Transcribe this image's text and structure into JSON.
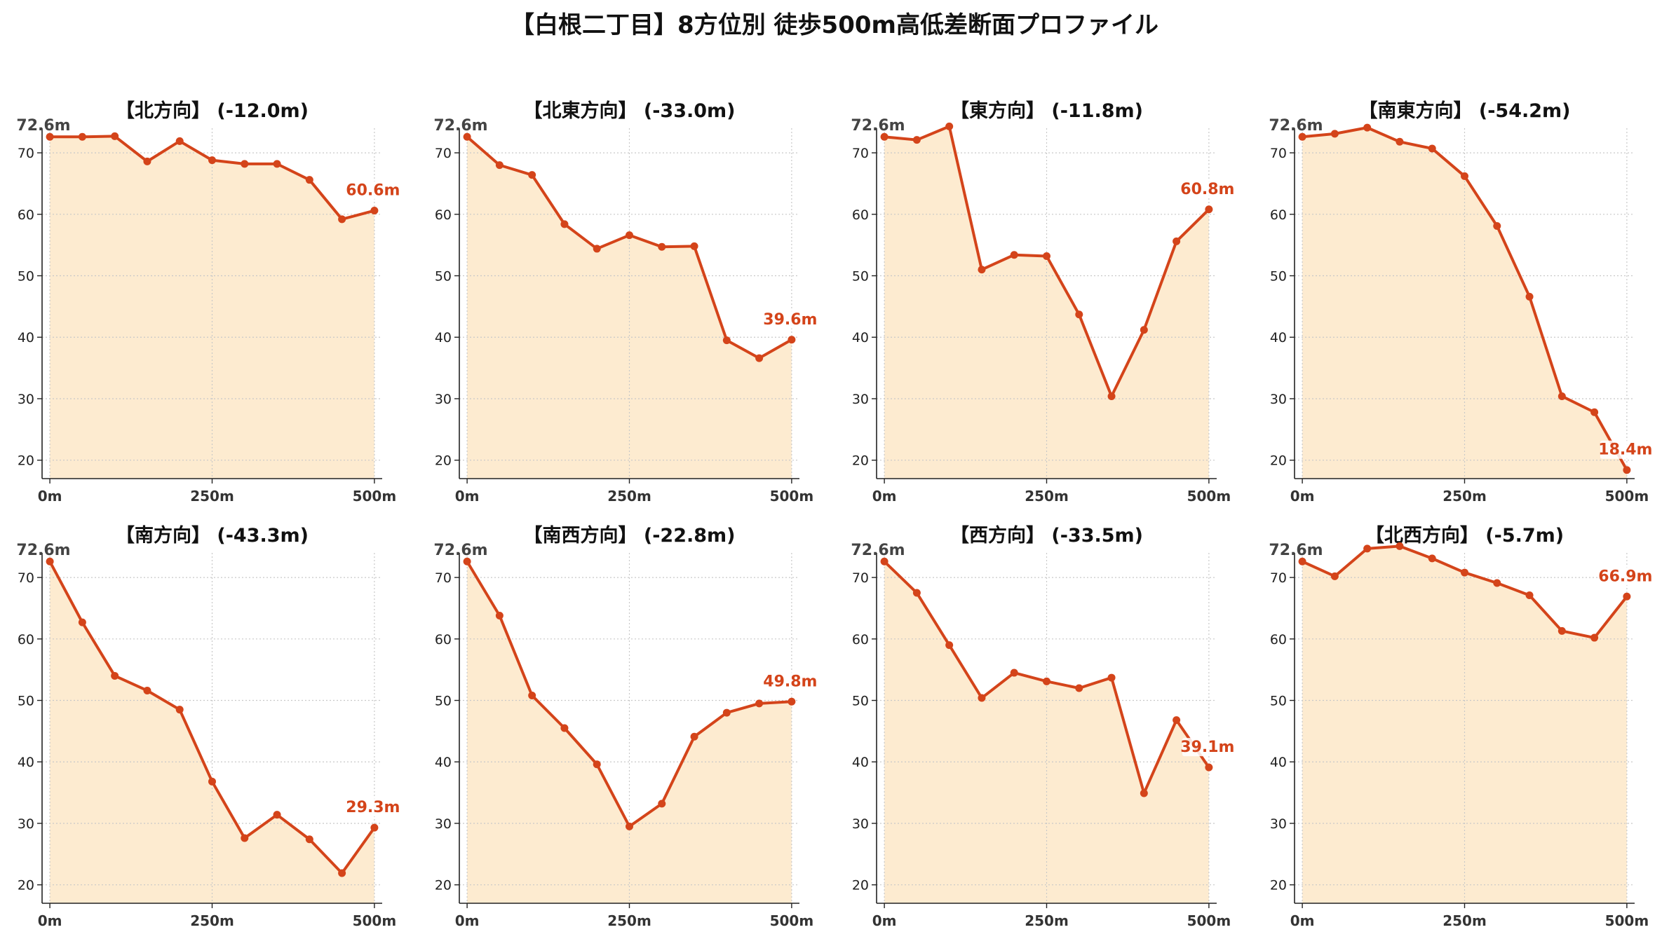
{
  "title": "【白根二丁目】8方位別 徒歩500m高低差断面プロファイル",
  "colors": {
    "line": "#d4441a",
    "fill": "#fdebd0",
    "grid": "#c8c8c8",
    "start_label": "#444444",
    "end_label": "#d4441a"
  },
  "chart_data": [
    {
      "type": "area",
      "title": "【北方向】 (-12.0m)",
      "xticks": [
        "0m",
        "250m",
        "500m"
      ],
      "yticks": [
        20,
        30,
        40,
        50,
        60,
        70
      ],
      "xlim": [
        -12,
        512
      ],
      "ylim": [
        17,
        74
      ],
      "grid": true,
      "x": [
        0,
        50,
        100,
        150,
        200,
        250,
        300,
        350,
        400,
        450,
        500
      ],
      "values": [
        72.6,
        72.6,
        72.7,
        68.6,
        71.9,
        68.8,
        68.2,
        68.2,
        65.6,
        59.2,
        60.6
      ],
      "start_label": "72.6m",
      "end_label": "60.6m"
    },
    {
      "type": "area",
      "title": "【北東方向】 (-33.0m)",
      "xticks": [
        "0m",
        "250m",
        "500m"
      ],
      "yticks": [
        20,
        30,
        40,
        50,
        60,
        70
      ],
      "xlim": [
        -12,
        512
      ],
      "ylim": [
        17,
        74
      ],
      "grid": true,
      "x": [
        0,
        50,
        100,
        150,
        200,
        250,
        300,
        350,
        400,
        450,
        500
      ],
      "values": [
        72.6,
        68.0,
        66.4,
        58.4,
        54.4,
        56.6,
        54.7,
        54.8,
        39.5,
        36.6,
        39.6
      ],
      "start_label": "72.6m",
      "end_label": "39.6m"
    },
    {
      "type": "area",
      "title": "【東方向】 (-11.8m)",
      "xticks": [
        "0m",
        "250m",
        "500m"
      ],
      "yticks": [
        20,
        30,
        40,
        50,
        60,
        70
      ],
      "xlim": [
        -12,
        512
      ],
      "ylim": [
        17,
        74
      ],
      "grid": true,
      "x": [
        0,
        50,
        100,
        150,
        200,
        250,
        300,
        350,
        400,
        450,
        500
      ],
      "values": [
        72.6,
        72.1,
        74.3,
        51.0,
        53.4,
        53.2,
        43.7,
        30.4,
        41.2,
        55.6,
        60.8
      ],
      "start_label": "72.6m",
      "end_label": "60.8m"
    },
    {
      "type": "area",
      "title": "【南東方向】 (-54.2m)",
      "xticks": [
        "0m",
        "250m",
        "500m"
      ],
      "yticks": [
        20,
        30,
        40,
        50,
        60,
        70
      ],
      "xlim": [
        -12,
        512
      ],
      "ylim": [
        17,
        74
      ],
      "grid": true,
      "x": [
        0,
        50,
        100,
        150,
        200,
        250,
        300,
        350,
        400,
        450,
        500
      ],
      "values": [
        72.6,
        73.1,
        74.1,
        71.8,
        70.7,
        66.2,
        58.1,
        46.6,
        30.4,
        27.8,
        18.4
      ],
      "start_label": "72.6m",
      "end_label": "18.4m"
    },
    {
      "type": "area",
      "title": "【南方向】 (-43.3m)",
      "xticks": [
        "0m",
        "250m",
        "500m"
      ],
      "yticks": [
        20,
        30,
        40,
        50,
        60,
        70
      ],
      "xlim": [
        -12,
        512
      ],
      "ylim": [
        17,
        74
      ],
      "grid": true,
      "x": [
        0,
        50,
        100,
        150,
        200,
        250,
        300,
        350,
        400,
        450,
        500
      ],
      "values": [
        72.6,
        62.7,
        54.0,
        51.6,
        48.5,
        36.8,
        27.6,
        31.4,
        27.4,
        21.9,
        29.3
      ],
      "start_label": "72.6m",
      "end_label": "29.3m"
    },
    {
      "type": "area",
      "title": "【南西方向】 (-22.8m)",
      "xticks": [
        "0m",
        "250m",
        "500m"
      ],
      "yticks": [
        20,
        30,
        40,
        50,
        60,
        70
      ],
      "xlim": [
        -12,
        512
      ],
      "ylim": [
        17,
        74
      ],
      "grid": true,
      "x": [
        0,
        50,
        100,
        150,
        200,
        250,
        300,
        350,
        400,
        450,
        500
      ],
      "values": [
        72.6,
        63.8,
        50.8,
        45.5,
        39.6,
        29.5,
        33.2,
        44.1,
        48.0,
        49.5,
        49.8
      ],
      "start_label": "72.6m",
      "end_label": "49.8m"
    },
    {
      "type": "area",
      "title": "【西方向】 (-33.5m)",
      "xticks": [
        "0m",
        "250m",
        "500m"
      ],
      "yticks": [
        20,
        30,
        40,
        50,
        60,
        70
      ],
      "xlim": [
        -12,
        512
      ],
      "ylim": [
        17,
        74
      ],
      "grid": true,
      "x": [
        0,
        50,
        100,
        150,
        200,
        250,
        300,
        350,
        400,
        450,
        500
      ],
      "values": [
        72.6,
        67.5,
        59.0,
        50.4,
        54.5,
        53.1,
        52.0,
        53.7,
        34.9,
        46.8,
        39.1
      ],
      "start_label": "72.6m",
      "end_label": "39.1m"
    },
    {
      "type": "area",
      "title": "【北西方向】 (-5.7m)",
      "xticks": [
        "0m",
        "250m",
        "500m"
      ],
      "yticks": [
        20,
        30,
        40,
        50,
        60,
        70
      ],
      "xlim": [
        -12,
        512
      ],
      "ylim": [
        17,
        74
      ],
      "grid": true,
      "x": [
        0,
        50,
        100,
        150,
        200,
        250,
        300,
        350,
        400,
        450,
        500
      ],
      "values": [
        72.6,
        70.2,
        74.7,
        75.1,
        73.1,
        70.8,
        69.1,
        67.1,
        61.3,
        60.2,
        66.9
      ],
      "start_label": "72.6m",
      "end_label": "66.9m"
    }
  ]
}
